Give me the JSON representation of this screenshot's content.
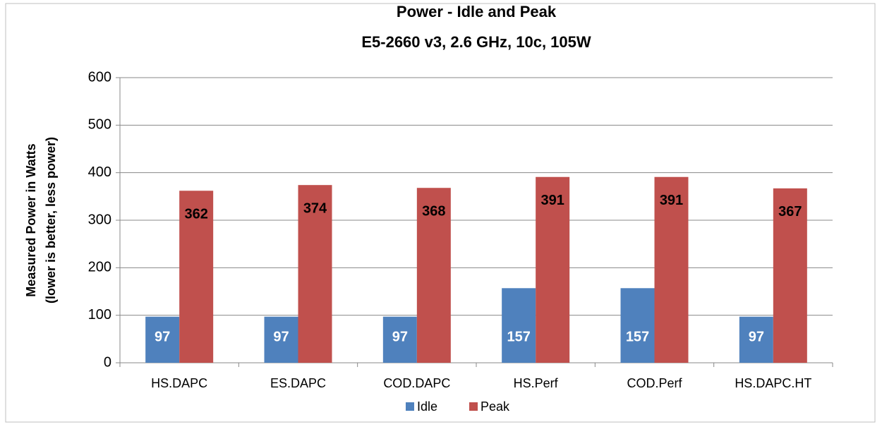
{
  "chart_data": {
    "type": "bar",
    "title": "Power - Idle and Peak",
    "subtitle": "E5-2660 v3, 2.6 GHz, 10c, 105W",
    "ylabel": [
      "Measured Power in Watts",
      "(lower is better, less power)"
    ],
    "categories": [
      "HS.DAPC",
      "ES.DAPC",
      "COD.DAPC",
      "HS.Perf",
      "COD.Perf",
      "HS.DAPC.HT"
    ],
    "series": [
      {
        "name": "Idle",
        "color": "#4f81bd",
        "values": [
          97,
          97,
          97,
          157,
          157,
          97
        ]
      },
      {
        "name": "Peak",
        "color": "#c0504d",
        "values": [
          362,
          374,
          368,
          391,
          391,
          367
        ]
      }
    ],
    "ylim": [
      0,
      600
    ],
    "yticks": [
      0,
      100,
      200,
      300,
      400,
      500,
      600
    ],
    "grid": true,
    "legend": "bottom"
  }
}
